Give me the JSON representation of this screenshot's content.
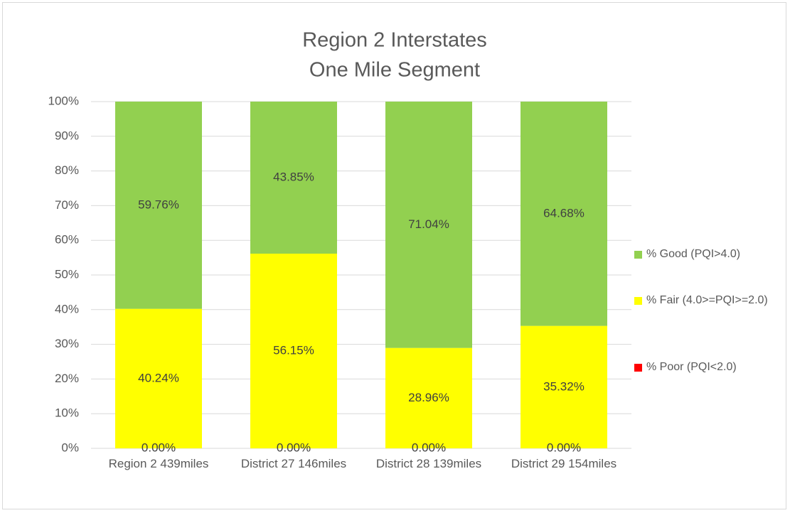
{
  "chart_data": {
    "type": "stacked_bar",
    "title": "Region 2 Interstates",
    "subtitle": "One Mile Segment",
    "categories": [
      "Region 2 439miles",
      "District 27 146miles",
      "District 28 139miles",
      "District 29 154miles"
    ],
    "series": [
      {
        "name": "% Poor (PQI<2.0)",
        "color": "#ff0000",
        "values": [
          0,
          0,
          0,
          0
        ],
        "value_labels": [
          "0.00%",
          "0.00%",
          "0.00%",
          "0.00%"
        ]
      },
      {
        "name": "% Fair (4.0>=PQI>=2.0)",
        "color": "#ffff00",
        "values": [
          40.24,
          56.15,
          28.96,
          35.32
        ],
        "value_labels": [
          "40.24%",
          "56.15%",
          "28.96%",
          "35.32%"
        ]
      },
      {
        "name": "% Good (PQI>4.0)",
        "color": "#92d050",
        "values": [
          59.76,
          43.85,
          71.04,
          64.68
        ],
        "value_labels": [
          "59.76%",
          "43.85%",
          "71.04%",
          "64.68%"
        ]
      }
    ],
    "ylim": [
      0,
      100
    ],
    "yticks": [
      {
        "value": 0,
        "label": "0%"
      },
      {
        "value": 10,
        "label": "10%"
      },
      {
        "value": 20,
        "label": "20%"
      },
      {
        "value": 30,
        "label": "30%"
      },
      {
        "value": 40,
        "label": "40%"
      },
      {
        "value": 50,
        "label": "50%"
      },
      {
        "value": 60,
        "label": "60%"
      },
      {
        "value": 70,
        "label": "70%"
      },
      {
        "value": 80,
        "label": "80%"
      },
      {
        "value": 90,
        "label": "90%"
      },
      {
        "value": 100,
        "label": "100%"
      }
    ],
    "grid": true,
    "legend": "right"
  }
}
